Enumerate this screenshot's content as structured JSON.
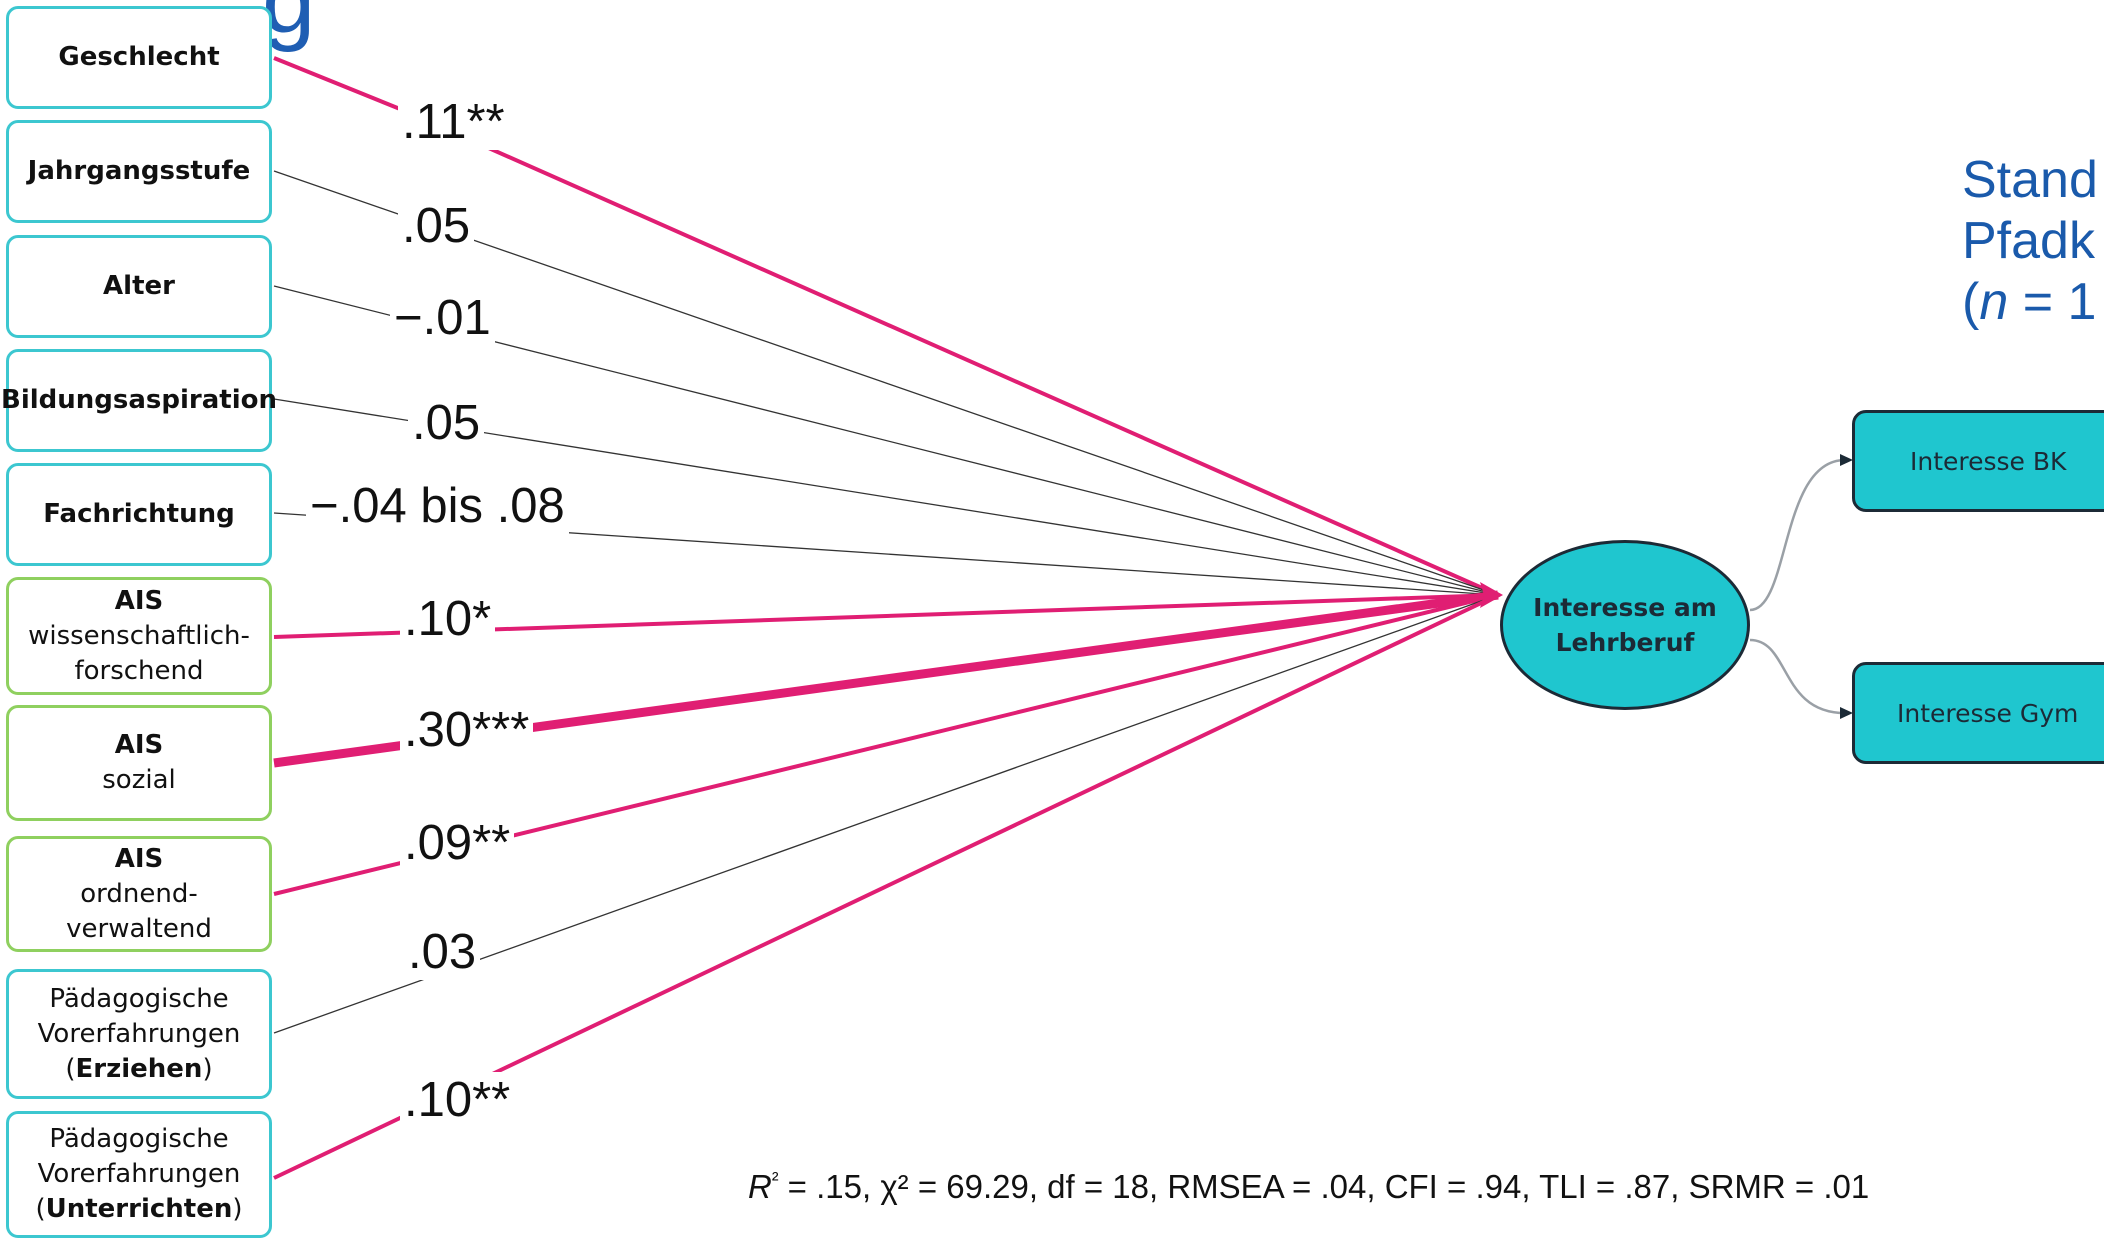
{
  "heading_fragment": "g",
  "side_title": {
    "line1": "Stand",
    "line2": "Pfadk",
    "line3_open": "(",
    "line3_n": "n",
    "line3_rest": " = 1"
  },
  "predictors": [
    {
      "line1": "Geschlecht"
    },
    {
      "line1": "Jahrgangsstufe"
    },
    {
      "line1": "Alter"
    },
    {
      "line1": "Bildungsaspiration"
    },
    {
      "line1": "Fachrichtung"
    },
    {
      "line1": "AIS",
      "line2": "wissenschaftlich-",
      "line3": "forschend"
    },
    {
      "line1": "AIS",
      "line2": "sozial"
    },
    {
      "line1": "AIS",
      "line2": "ordnend-verwaltend"
    },
    {
      "line1": "Pädagogische",
      "line2": "Vorerfahrungen",
      "line3_pre": "(",
      "line3_bold": "Erziehen",
      "line3_post": ")"
    },
    {
      "line1": "Pädagogische",
      "line2": "Vorerfahrungen",
      "line3_pre": "(",
      "line3_bold": "Unterrichten",
      "line3_post": ")"
    }
  ],
  "coefficients": [
    ".11**",
    ".05",
    "−.01",
    ".05",
    "−.04 bis .08",
    ".10*",
    ".30***",
    ".09**",
    ".03",
    ".10**"
  ],
  "significant": [
    true,
    false,
    false,
    false,
    false,
    true,
    true,
    true,
    false,
    true
  ],
  "outcome": {
    "line1": "Interesse am",
    "line2": "Lehrberuf"
  },
  "sub_outcomes": [
    "Interesse BK",
    "Interesse Gym"
  ],
  "fit_stats": {
    "r2_label": "R",
    "r2_sup": "²",
    "text": " = .15, χ² = 69.29, df = 18, RMSEA = .04, CFI = .94, TLI = .87, SRMR = .01"
  },
  "colors": {
    "significant_path": "#e01e73",
    "nonsignificant_path": "#333333",
    "predictor_border": "#3cc7d0",
    "ais_border": "#8fd05f",
    "node_fill": "#1fc6cf",
    "title_blue": "#1a5aab"
  }
}
